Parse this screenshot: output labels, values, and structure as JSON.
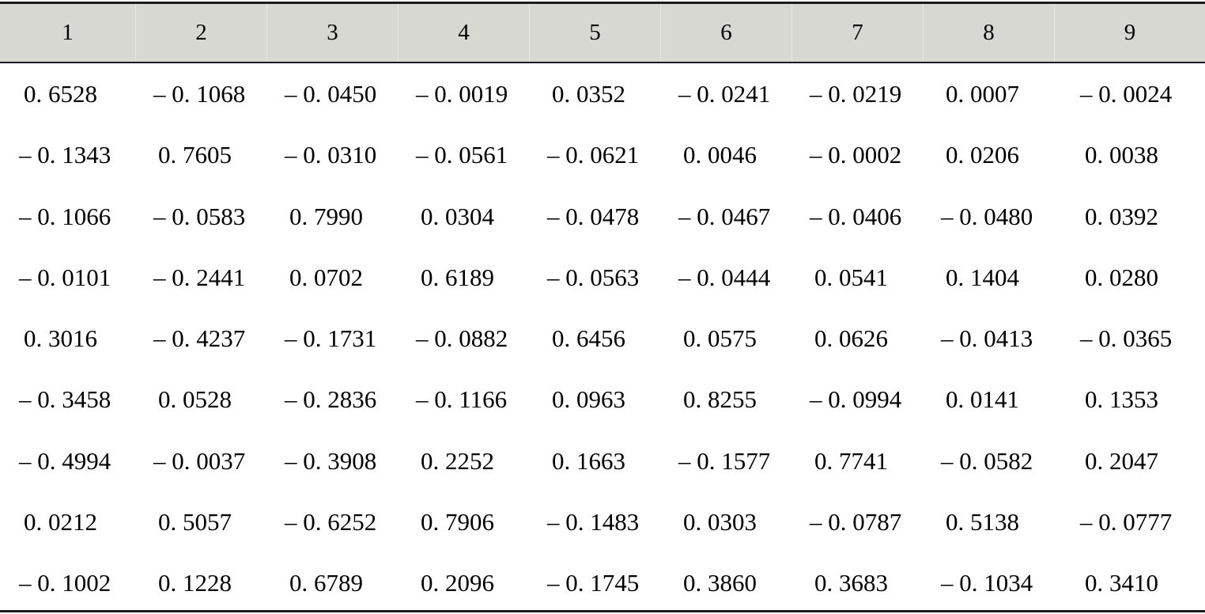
{
  "table": {
    "headers": [
      "1",
      "2",
      "3",
      "4",
      "5",
      "6",
      "7",
      "8",
      "9"
    ],
    "rows": [
      [
        "0. 6528",
        "– 0. 1068",
        "– 0. 0450",
        "– 0. 0019",
        "0. 0352",
        "– 0. 0241",
        "– 0. 0219",
        "0. 0007",
        "– 0. 0024"
      ],
      [
        "– 0. 1343",
        "0. 7605",
        "– 0. 0310",
        "– 0. 0561",
        "– 0. 0621",
        "0. 0046",
        "– 0. 0002",
        "0. 0206",
        "0. 0038"
      ],
      [
        "– 0. 1066",
        "– 0. 0583",
        "0. 7990",
        "0. 0304",
        "– 0. 0478",
        "– 0. 0467",
        "– 0. 0406",
        "– 0. 0480",
        "0. 0392"
      ],
      [
        "– 0. 0101",
        "– 0. 2441",
        "0. 0702",
        "0. 6189",
        "– 0. 0563",
        "– 0. 0444",
        "0. 0541",
        "0. 1404",
        "0. 0280"
      ],
      [
        "0. 3016",
        "– 0. 4237",
        "– 0. 1731",
        "– 0. 0882",
        "0. 6456",
        "0. 0575",
        "0. 0626",
        "– 0. 0413",
        "– 0. 0365"
      ],
      [
        "– 0. 3458",
        "0. 0528",
        "– 0. 2836",
        "– 0. 1166",
        "0. 0963",
        "0. 8255",
        "– 0. 0994",
        "0. 0141",
        "0. 1353"
      ],
      [
        "– 0. 4994",
        "– 0. 0037",
        "– 0. 3908",
        "0. 2252",
        "0. 1663",
        "– 0. 1577",
        "0. 7741",
        "– 0. 0582",
        "0. 2047"
      ],
      [
        "0. 0212",
        "0. 5057",
        "– 0. 6252",
        "0. 7906",
        "– 0. 1483",
        "0. 0303",
        "– 0. 0787",
        "0. 5138",
        "– 0. 0777"
      ],
      [
        "– 0. 1002",
        "0. 1228",
        "0. 6789",
        "0. 2096",
        "– 0. 1745",
        "0. 3860",
        "0. 3683",
        "– 0. 1034",
        "0. 3410"
      ]
    ]
  },
  "colors": {
    "header_background": "#d8d8d3",
    "rule": "#1a1a1a",
    "text": "#000000"
  }
}
